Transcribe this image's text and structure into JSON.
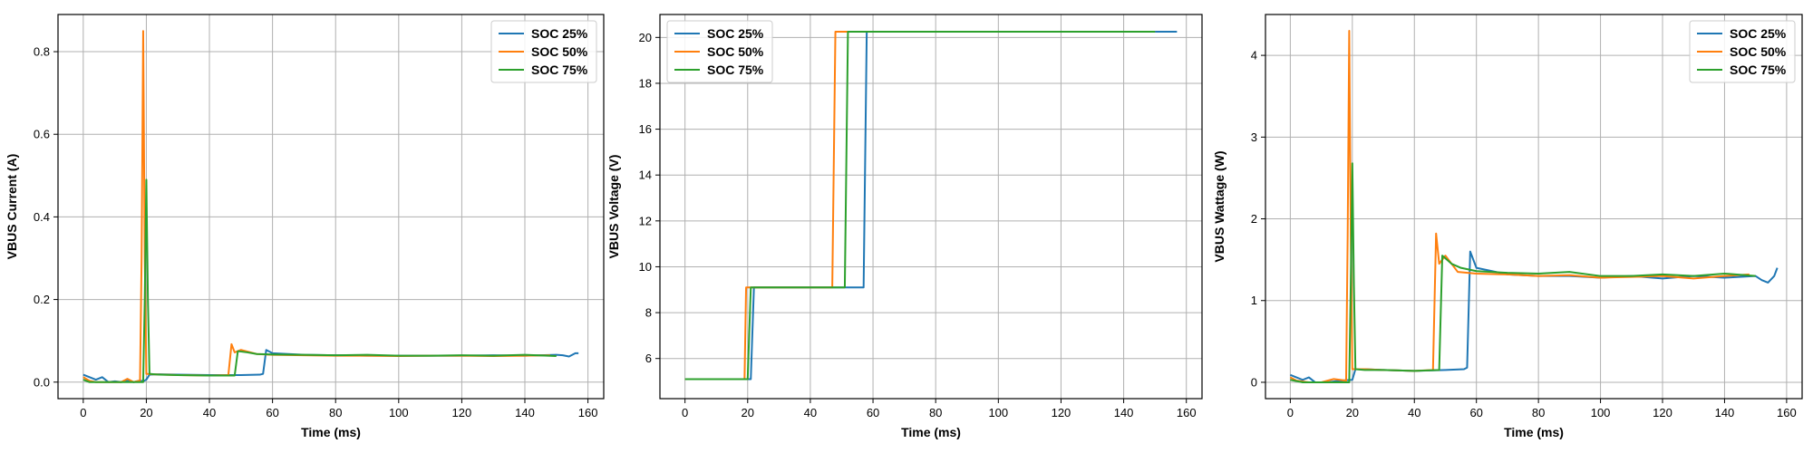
{
  "colors": {
    "soc25": "#1f77b4",
    "soc50": "#ff7f0e",
    "soc75": "#2ca02c"
  },
  "chart_data": [
    {
      "type": "line",
      "title": "",
      "xlabel": "Time (ms)",
      "ylabel": "VBUS Current (A)",
      "xlim": [
        -8,
        165
      ],
      "ylim": [
        -0.04,
        0.89
      ],
      "xticks": [
        0,
        20,
        40,
        60,
        80,
        100,
        120,
        140,
        160
      ],
      "yticks": [
        0.0,
        0.2,
        0.4,
        0.6,
        0.8
      ],
      "ytick_decimals": 1,
      "grid": true,
      "legend": "top-right",
      "series": [
        {
          "name": "SOC 25%",
          "color": "#1f77b4",
          "points": [
            [
              0,
              0.018
            ],
            [
              2,
              0.012
            ],
            [
              4,
              0.006
            ],
            [
              6,
              0.012
            ],
            [
              8,
              0.0
            ],
            [
              10,
              0.002
            ],
            [
              12,
              0.0
            ],
            [
              14,
              0.003
            ],
            [
              16,
              0.0
            ],
            [
              18,
              0.004
            ],
            [
              19,
              0.002
            ],
            [
              20,
              0.006
            ],
            [
              21,
              0.018
            ],
            [
              24,
              0.019
            ],
            [
              30,
              0.018
            ],
            [
              40,
              0.017
            ],
            [
              50,
              0.017
            ],
            [
              56,
              0.018
            ],
            [
              57,
              0.02
            ],
            [
              58,
              0.078
            ],
            [
              60,
              0.07
            ],
            [
              70,
              0.066
            ],
            [
              80,
              0.065
            ],
            [
              90,
              0.064
            ],
            [
              100,
              0.064
            ],
            [
              110,
              0.064
            ],
            [
              120,
              0.064
            ],
            [
              130,
              0.065
            ],
            [
              140,
              0.064
            ],
            [
              150,
              0.066
            ],
            [
              152,
              0.065
            ],
            [
              154,
              0.062
            ],
            [
              156,
              0.07
            ],
            [
              157,
              0.07
            ]
          ]
        },
        {
          "name": "SOC 50%",
          "color": "#ff7f0e",
          "points": [
            [
              0,
              0.012
            ],
            [
              2,
              0.003
            ],
            [
              4,
              0.0
            ],
            [
              8,
              0.0
            ],
            [
              12,
              0.0
            ],
            [
              14,
              0.008
            ],
            [
              16,
              0.0
            ],
            [
              18,
              0.004
            ],
            [
              18.5,
              0.3
            ],
            [
              19,
              0.85
            ],
            [
              19.5,
              0.3
            ],
            [
              20,
              0.02
            ],
            [
              22,
              0.019
            ],
            [
              30,
              0.017
            ],
            [
              40,
              0.016
            ],
            [
              46,
              0.017
            ],
            [
              47,
              0.092
            ],
            [
              48,
              0.072
            ],
            [
              50,
              0.078
            ],
            [
              55,
              0.068
            ],
            [
              60,
              0.066
            ],
            [
              70,
              0.065
            ],
            [
              80,
              0.064
            ],
            [
              90,
              0.064
            ],
            [
              100,
              0.063
            ],
            [
              110,
              0.064
            ],
            [
              120,
              0.064
            ],
            [
              130,
              0.063
            ],
            [
              140,
              0.064
            ],
            [
              148,
              0.065
            ]
          ]
        },
        {
          "name": "SOC 75%",
          "color": "#2ca02c",
          "points": [
            [
              0,
              0.006
            ],
            [
              2,
              0.0
            ],
            [
              6,
              0.0
            ],
            [
              10,
              0.0
            ],
            [
              14,
              0.0
            ],
            [
              17,
              0.0
            ],
            [
              19,
              0.0
            ],
            [
              19.5,
              0.2
            ],
            [
              20,
              0.49
            ],
            [
              20.5,
              0.2
            ],
            [
              21,
              0.02
            ],
            [
              24,
              0.018
            ],
            [
              30,
              0.017
            ],
            [
              40,
              0.016
            ],
            [
              48,
              0.016
            ],
            [
              49,
              0.075
            ],
            [
              52,
              0.072
            ],
            [
              55,
              0.068
            ],
            [
              60,
              0.067
            ],
            [
              70,
              0.066
            ],
            [
              80,
              0.065
            ],
            [
              90,
              0.066
            ],
            [
              100,
              0.064
            ],
            [
              110,
              0.064
            ],
            [
              120,
              0.065
            ],
            [
              130,
              0.064
            ],
            [
              140,
              0.066
            ],
            [
              150,
              0.063
            ]
          ]
        }
      ]
    },
    {
      "type": "line",
      "title": "",
      "xlabel": "Time (ms)",
      "ylabel": "VBUS Voltage (V)",
      "xlim": [
        -8,
        165
      ],
      "ylim": [
        4.25,
        21.0
      ],
      "xticks": [
        0,
        20,
        40,
        60,
        80,
        100,
        120,
        140,
        160
      ],
      "yticks": [
        6,
        8,
        10,
        12,
        14,
        16,
        18,
        20
      ],
      "ytick_decimals": 0,
      "grid": true,
      "legend": "top-left",
      "series": [
        {
          "name": "SOC 25%",
          "color": "#1f77b4",
          "points": [
            [
              0,
              5.1
            ],
            [
              21,
              5.1
            ],
            [
              22,
              9.1
            ],
            [
              57,
              9.1
            ],
            [
              58,
              20.25
            ],
            [
              157,
              20.25
            ]
          ]
        },
        {
          "name": "SOC 50%",
          "color": "#ff7f0e",
          "points": [
            [
              0,
              5.1
            ],
            [
              19,
              5.1
            ],
            [
              19.5,
              9.1
            ],
            [
              47,
              9.1
            ],
            [
              48,
              20.25
            ],
            [
              150,
              20.25
            ]
          ]
        },
        {
          "name": "SOC 75%",
          "color": "#2ca02c",
          "points": [
            [
              0,
              5.1
            ],
            [
              20,
              5.1
            ],
            [
              21,
              9.1
            ],
            [
              51,
              9.1
            ],
            [
              52,
              20.25
            ],
            [
              150,
              20.25
            ]
          ]
        }
      ]
    },
    {
      "type": "line",
      "title": "",
      "xlabel": "Time (ms)",
      "ylabel": "VBUS Wattage (W)",
      "xlim": [
        -8,
        165
      ],
      "ylim": [
        -0.2,
        4.5
      ],
      "xticks": [
        0,
        20,
        40,
        60,
        80,
        100,
        120,
        140,
        160
      ],
      "yticks": [
        0,
        1,
        2,
        3,
        4
      ],
      "ytick_decimals": 0,
      "grid": true,
      "legend": "top-right",
      "series": [
        {
          "name": "SOC 25%",
          "color": "#1f77b4",
          "points": [
            [
              0,
              0.09
            ],
            [
              2,
              0.06
            ],
            [
              4,
              0.03
            ],
            [
              6,
              0.06
            ],
            [
              8,
              0.0
            ],
            [
              12,
              0.0
            ],
            [
              16,
              0.02
            ],
            [
              20,
              0.03
            ],
            [
              21,
              0.16
            ],
            [
              24,
              0.16
            ],
            [
              30,
              0.15
            ],
            [
              40,
              0.14
            ],
            [
              50,
              0.15
            ],
            [
              56,
              0.16
            ],
            [
              57,
              0.18
            ],
            [
              58,
              1.6
            ],
            [
              60,
              1.4
            ],
            [
              70,
              1.32
            ],
            [
              80,
              1.3
            ],
            [
              90,
              1.3
            ],
            [
              100,
              1.28
            ],
            [
              110,
              1.3
            ],
            [
              120,
              1.27
            ],
            [
              130,
              1.3
            ],
            [
              140,
              1.28
            ],
            [
              150,
              1.3
            ],
            [
              152,
              1.25
            ],
            [
              154,
              1.22
            ],
            [
              156,
              1.3
            ],
            [
              157,
              1.4
            ]
          ]
        },
        {
          "name": "SOC 50%",
          "color": "#ff7f0e",
          "points": [
            [
              0,
              0.06
            ],
            [
              2,
              0.02
            ],
            [
              6,
              0.0
            ],
            [
              10,
              0.0
            ],
            [
              14,
              0.04
            ],
            [
              18,
              0.02
            ],
            [
              18.5,
              1.8
            ],
            [
              19,
              4.3
            ],
            [
              19.5,
              1.8
            ],
            [
              20,
              0.16
            ],
            [
              24,
              0.16
            ],
            [
              30,
              0.15
            ],
            [
              40,
              0.14
            ],
            [
              46,
              0.15
            ],
            [
              47,
              1.82
            ],
            [
              48,
              1.45
            ],
            [
              50,
              1.55
            ],
            [
              54,
              1.35
            ],
            [
              60,
              1.33
            ],
            [
              70,
              1.32
            ],
            [
              80,
              1.3
            ],
            [
              90,
              1.31
            ],
            [
              100,
              1.28
            ],
            [
              110,
              1.29
            ],
            [
              120,
              1.3
            ],
            [
              130,
              1.27
            ],
            [
              140,
              1.3
            ],
            [
              148,
              1.32
            ]
          ]
        },
        {
          "name": "SOC 75%",
          "color": "#2ca02c",
          "points": [
            [
              0,
              0.03
            ],
            [
              4,
              0.0
            ],
            [
              10,
              0.0
            ],
            [
              17,
              0.0
            ],
            [
              19,
              0.0
            ],
            [
              19.5,
              1.2
            ],
            [
              20,
              2.68
            ],
            [
              20.5,
              1.2
            ],
            [
              21,
              0.16
            ],
            [
              24,
              0.15
            ],
            [
              30,
              0.15
            ],
            [
              40,
              0.14
            ],
            [
              48,
              0.15
            ],
            [
              49,
              1.55
            ],
            [
              52,
              1.45
            ],
            [
              55,
              1.4
            ],
            [
              60,
              1.36
            ],
            [
              70,
              1.34
            ],
            [
              80,
              1.33
            ],
            [
              90,
              1.35
            ],
            [
              100,
              1.3
            ],
            [
              110,
              1.3
            ],
            [
              120,
              1.32
            ],
            [
              130,
              1.3
            ],
            [
              140,
              1.33
            ],
            [
              150,
              1.3
            ]
          ]
        }
      ]
    }
  ]
}
